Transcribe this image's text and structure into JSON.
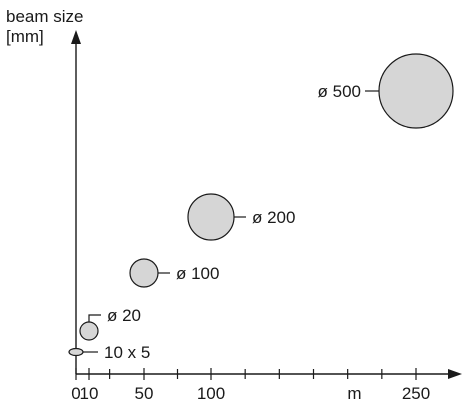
{
  "chart_data": {
    "type": "scatter",
    "ylabel_lines": [
      "beam size",
      "[mm]"
    ],
    "xunit": "m",
    "xticks_labeled": [
      {
        "value": 0,
        "label": "0"
      },
      {
        "value": 10,
        "label": "10"
      },
      {
        "value": 50,
        "label": "50"
      },
      {
        "value": 100,
        "label": "100"
      },
      {
        "value": 250,
        "label": "250"
      }
    ],
    "xticks_minor": [
      25,
      75,
      125,
      150,
      175,
      200,
      225
    ],
    "xlim": [
      0,
      270
    ],
    "ylim": [
      0,
      500
    ],
    "points": [
      {
        "label": "10 x 5",
        "x": 0,
        "size": 10,
        "shape": "ellipse"
      },
      {
        "label": "ø 20",
        "x": 10,
        "size": 20,
        "shape": "circle"
      },
      {
        "label": "ø 100",
        "x": 50,
        "size": 100,
        "shape": "circle"
      },
      {
        "label": "ø 200",
        "x": 100,
        "size": 200,
        "shape": "circle"
      },
      {
        "label": "ø 500",
        "x": 250,
        "size": 500,
        "shape": "circle"
      }
    ],
    "colors": {
      "fill": "#d6d6d6",
      "stroke": "#1a1a1a",
      "axis": "#1a1a1a"
    }
  }
}
